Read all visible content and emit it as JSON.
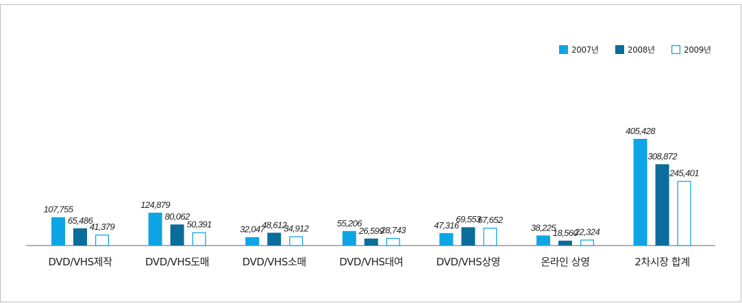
{
  "chart_data": {
    "type": "bar",
    "categories": [
      "DVD/VHS제작",
      "DVD/VHS도매",
      "DVD/VHS소매",
      "DVD/VHS대여",
      "DVD/VHS상영",
      "온라인 상영",
      "2차시장 합계"
    ],
    "series": [
      {
        "name": "2007년",
        "values": [
          107755,
          124879,
          32047,
          55206,
          47316,
          38225,
          405428
        ],
        "labels": [
          "107,755",
          "124,879",
          "32,047",
          "55,206",
          "47,316",
          "38,225",
          "405,428"
        ],
        "color": "#0ea5e6",
        "style": "filled"
      },
      {
        "name": "2008년",
        "values": [
          65486,
          80062,
          48612,
          26599,
          69553,
          18560,
          308872
        ],
        "labels": [
          "65,486",
          "80,062",
          "48,612",
          "26,599",
          "69,553",
          "18,560",
          "308,872"
        ],
        "color": "#0b6d9c",
        "style": "filled"
      },
      {
        "name": "2009년",
        "values": [
          41379,
          50391,
          34912,
          28743,
          67652,
          22324,
          245401
        ],
        "labels": [
          "41,379",
          "50,391",
          "34,912",
          "28,743",
          "67,652",
          "22,324",
          "245,401"
        ],
        "color": "#0ea5e6",
        "style": "outline"
      }
    ],
    "title": "",
    "xlabel": "",
    "ylabel": "",
    "ylim": [
      0,
      450000
    ],
    "grid": false,
    "legend_position": "top-right"
  }
}
